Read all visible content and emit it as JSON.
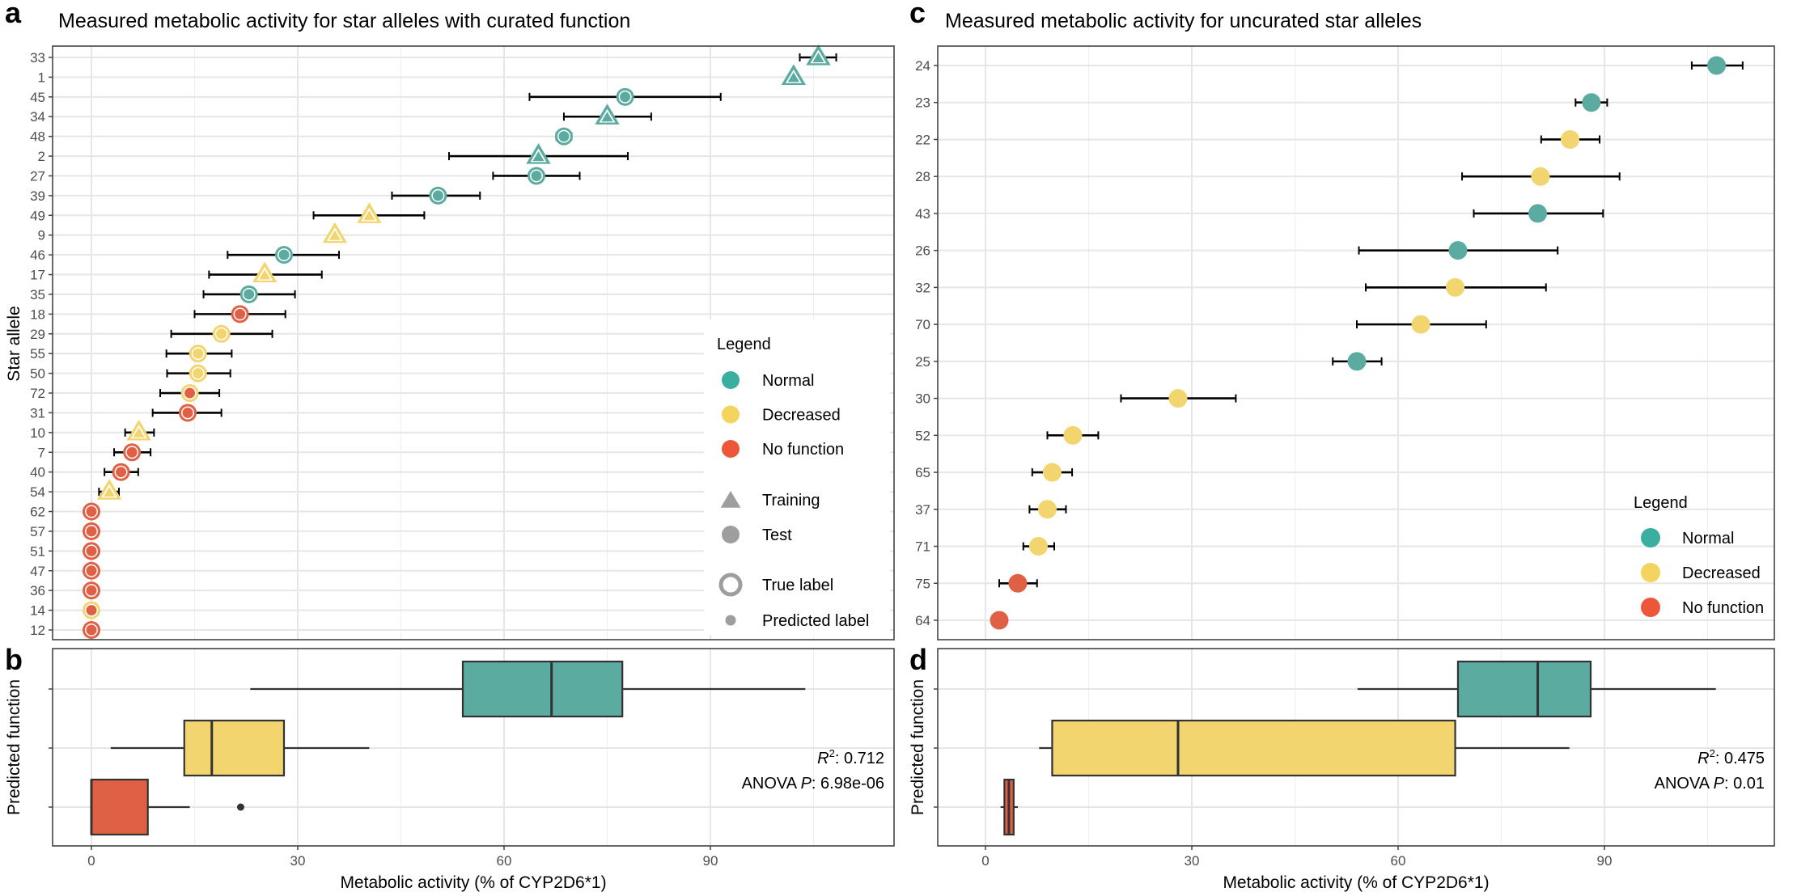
{
  "colors": {
    "Normal": "#5BABA0",
    "Decreased": "#F2D56F",
    "No function": "#E06046",
    "legend_Normal": "#3AAE9F",
    "legend_Decreased": "#F4D35E",
    "legend_No function": "#EE563A",
    "neutral": "#9E9E9E"
  },
  "chart_data": [
    {
      "panel": "a",
      "type": "scatter",
      "title": "Measured metabolic activity for star alleles with curated function",
      "ylabel": "Star allele",
      "xlim": [
        -5.5,
        116.5
      ],
      "xticks": [
        0,
        30,
        60,
        90
      ],
      "grid": true,
      "legend_placement": "right",
      "legend": {
        "title": "Legend",
        "function": [
          "Normal",
          "Decreased",
          "No function"
        ],
        "set": [
          "Training",
          "Test"
        ],
        "label": [
          "True label",
          "Predicted label"
        ]
      },
      "points": [
        {
          "allele": "33",
          "set": "Training",
          "true": "Normal",
          "pred": "Normal",
          "x": 105.7,
          "lo": 103,
          "hi": 108.3
        },
        {
          "allele": "1",
          "set": "Training",
          "true": "Normal",
          "pred": "Normal",
          "x": 102.1,
          "lo": null,
          "hi": null
        },
        {
          "allele": "45",
          "set": "Test",
          "true": "Normal",
          "pred": "Normal",
          "x": 77.6,
          "lo": 63.7,
          "hi": 91.5
        },
        {
          "allele": "34",
          "set": "Training",
          "true": "Normal",
          "pred": "Normal",
          "x": 75,
          "lo": 68.7,
          "hi": 81.4
        },
        {
          "allele": "48",
          "set": "Test",
          "true": "Normal",
          "pred": "Normal",
          "x": 68.7,
          "lo": 67.6,
          "hi": 69.8
        },
        {
          "allele": "2",
          "set": "Training",
          "true": "Normal",
          "pred": "Normal",
          "x": 65,
          "lo": 52,
          "hi": 78
        },
        {
          "allele": "27",
          "set": "Test",
          "true": "Normal",
          "pred": "Normal",
          "x": 64.7,
          "lo": 58.4,
          "hi": 71
        },
        {
          "allele": "39",
          "set": "Test",
          "true": "Normal",
          "pred": "Normal",
          "x": 50.4,
          "lo": 43.7,
          "hi": 56.5
        },
        {
          "allele": "49",
          "set": "Training",
          "true": "Decreased",
          "pred": "Decreased",
          "x": 40.4,
          "lo": 32.3,
          "hi": 48.4
        },
        {
          "allele": "9",
          "set": "Training",
          "true": "Decreased",
          "pred": "Decreased",
          "x": 35.4,
          "lo": null,
          "hi": null
        },
        {
          "allele": "46",
          "set": "Test",
          "true": "Normal",
          "pred": "Normal",
          "x": 28,
          "lo": 19.8,
          "hi": 36
        },
        {
          "allele": "17",
          "set": "Training",
          "true": "Decreased",
          "pred": "Decreased",
          "x": 25.2,
          "lo": 17.1,
          "hi": 33.5
        },
        {
          "allele": "35",
          "set": "Test",
          "true": "Normal",
          "pred": "Normal",
          "x": 22.9,
          "lo": 16.3,
          "hi": 29.6
        },
        {
          "allele": "18",
          "set": "Test",
          "true": "No function",
          "pred": "No function",
          "x": 21.6,
          "lo": 15,
          "hi": 28.2
        },
        {
          "allele": "29",
          "set": "Test",
          "true": "Decreased",
          "pred": "Decreased",
          "x": 18.9,
          "lo": 11.6,
          "hi": 26.3
        },
        {
          "allele": "55",
          "set": "Test",
          "true": "Decreased",
          "pred": "Decreased",
          "x": 15.5,
          "lo": 10.9,
          "hi": 20.4
        },
        {
          "allele": "50",
          "set": "Test",
          "true": "Decreased",
          "pred": "Decreased",
          "x": 15.5,
          "lo": 11,
          "hi": 20.2
        },
        {
          "allele": "72",
          "set": "Test",
          "true": "Decreased",
          "pred": "No function",
          "x": 14.3,
          "lo": 10,
          "hi": 18.6
        },
        {
          "allele": "31",
          "set": "Test",
          "true": "No function",
          "pred": "No function",
          "x": 14,
          "lo": 8.9,
          "hi": 18.9
        },
        {
          "allele": "10",
          "set": "Training",
          "true": "Decreased",
          "pred": "Decreased",
          "x": 6.9,
          "lo": 4.9,
          "hi": 9.1
        },
        {
          "allele": "7",
          "set": "Test",
          "true": "No function",
          "pred": "No function",
          "x": 5.9,
          "lo": 3.3,
          "hi": 8.6
        },
        {
          "allele": "40",
          "set": "Test",
          "true": "No function",
          "pred": "No function",
          "x": 4.3,
          "lo": 1.9,
          "hi": 6.8
        },
        {
          "allele": "54",
          "set": "Training",
          "true": "Decreased",
          "pred": "Decreased",
          "x": 2.6,
          "lo": 1.1,
          "hi": 4
        },
        {
          "allele": "62",
          "set": "Test",
          "true": "No function",
          "pred": "No function",
          "x": 0,
          "lo": null,
          "hi": null
        },
        {
          "allele": "57",
          "set": "Test",
          "true": "No function",
          "pred": "No function",
          "x": 0,
          "lo": null,
          "hi": null
        },
        {
          "allele": "51",
          "set": "Test",
          "true": "No function",
          "pred": "No function",
          "x": 0,
          "lo": null,
          "hi": null
        },
        {
          "allele": "47",
          "set": "Test",
          "true": "No function",
          "pred": "No function",
          "x": 0,
          "lo": null,
          "hi": null
        },
        {
          "allele": "36",
          "set": "Test",
          "true": "No function",
          "pred": "No function",
          "x": 0,
          "lo": null,
          "hi": null
        },
        {
          "allele": "14",
          "set": "Test",
          "true": "Decreased",
          "pred": "No function",
          "x": 0,
          "lo": null,
          "hi": null
        },
        {
          "allele": "12",
          "set": "Test",
          "true": "No function",
          "pred": "No function",
          "x": 0,
          "lo": null,
          "hi": null
        }
      ]
    },
    {
      "panel": "b",
      "type": "box",
      "xlabel": "Metabolic activity (% of CYP2D6*1)",
      "ylabel": "Predicted function",
      "xlim": [
        -5.5,
        116.5
      ],
      "xticks": [
        0,
        30,
        60,
        90
      ],
      "grid": true,
      "stats": {
        "r_symbol": "R",
        "r_sup": "2",
        "r2": ": 0.712",
        "anova_label": "ANOVA ",
        "p_symbol": "P",
        "p_value": ": 6.98e-06"
      },
      "boxes": [
        {
          "group": "Normal",
          "min": 23.1,
          "q1": 54,
          "median": 66.9,
          "q3": 77.2,
          "max": 103.8,
          "outliers": []
        },
        {
          "group": "Decreased",
          "min": 2.8,
          "q1": 13.5,
          "median": 17.5,
          "q3": 28,
          "max": 40.4,
          "outliers": []
        },
        {
          "group": "No function",
          "min": 0,
          "q1": 0,
          "median": 0,
          "q3": 8.2,
          "max": 14.3,
          "outliers": [
            21.7
          ]
        }
      ]
    },
    {
      "panel": "c",
      "type": "scatter",
      "title": "Measured metabolic activity for uncurated star alleles",
      "xlim": [
        -5.5,
        116.5
      ],
      "xticks": [
        0,
        30,
        60,
        90
      ],
      "grid": true,
      "legend_placement": "bottom-right",
      "legend": {
        "title": "Legend",
        "function": [
          "Normal",
          "Decreased",
          "No function"
        ]
      },
      "points": [
        {
          "allele": "24",
          "pred": "Normal",
          "x": 106.3,
          "lo": 102.7,
          "hi": 110.1
        },
        {
          "allele": "23",
          "pred": "Normal",
          "x": 88.1,
          "lo": 85.8,
          "hi": 90.4
        },
        {
          "allele": "22",
          "pred": "Decreased",
          "x": 85,
          "lo": 80.8,
          "hi": 89.3
        },
        {
          "allele": "28",
          "pred": "Decreased",
          "x": 80.7,
          "lo": 69.3,
          "hi": 92.2
        },
        {
          "allele": "43",
          "pred": "Normal",
          "x": 80.3,
          "lo": 71,
          "hi": 89.8
        },
        {
          "allele": "26",
          "pred": "Normal",
          "x": 68.7,
          "lo": 54.3,
          "hi": 83.2
        },
        {
          "allele": "32",
          "pred": "Decreased",
          "x": 68.3,
          "lo": 55.3,
          "hi": 81.5
        },
        {
          "allele": "70",
          "pred": "Decreased",
          "x": 63.3,
          "lo": 54,
          "hi": 72.8
        },
        {
          "allele": "25",
          "pred": "Normal",
          "x": 54,
          "lo": 50.5,
          "hi": 57.6
        },
        {
          "allele": "30",
          "pred": "Decreased",
          "x": 28,
          "lo": 19.7,
          "hi": 36.4
        },
        {
          "allele": "52",
          "pred": "Decreased",
          "x": 12.7,
          "lo": 9,
          "hi": 16.4
        },
        {
          "allele": "65",
          "pred": "Decreased",
          "x": 9.7,
          "lo": 6.8,
          "hi": 12.6
        },
        {
          "allele": "37",
          "pred": "Decreased",
          "x": 9,
          "lo": 6.4,
          "hi": 11.7
        },
        {
          "allele": "71",
          "pred": "Decreased",
          "x": 7.7,
          "lo": 5.5,
          "hi": 10
        },
        {
          "allele": "75",
          "pred": "No function",
          "x": 4.7,
          "lo": 2,
          "hi": 7.5
        },
        {
          "allele": "64",
          "pred": "No function",
          "x": 2,
          "lo": null,
          "hi": null
        }
      ]
    },
    {
      "panel": "d",
      "type": "box",
      "xlabel": "Metabolic activity (% of CYP2D6*1)",
      "ylabel": "Predicted function",
      "xlim": [
        -5.5,
        116.5
      ],
      "xticks": [
        0,
        30,
        60,
        90
      ],
      "grid": true,
      "stats": {
        "r_symbol": "R",
        "r_sup": "2",
        "r2": ": 0.475",
        "anova_label": "ANOVA ",
        "p_symbol": "P",
        "p_value": ": 0.01"
      },
      "boxes": [
        {
          "group": "Normal",
          "min": 54.1,
          "q1": 68.7,
          "median": 80.3,
          "q3": 88,
          "max": 106.2,
          "outliers": []
        },
        {
          "group": "Decreased",
          "min": 7.8,
          "q1": 9.7,
          "median": 28,
          "q3": 68.3,
          "max": 84.9,
          "outliers": []
        },
        {
          "group": "No function",
          "min": 2.2,
          "q1": 2.75,
          "median": 3.4,
          "q3": 4.1,
          "max": 4.7,
          "outliers": []
        }
      ]
    }
  ]
}
